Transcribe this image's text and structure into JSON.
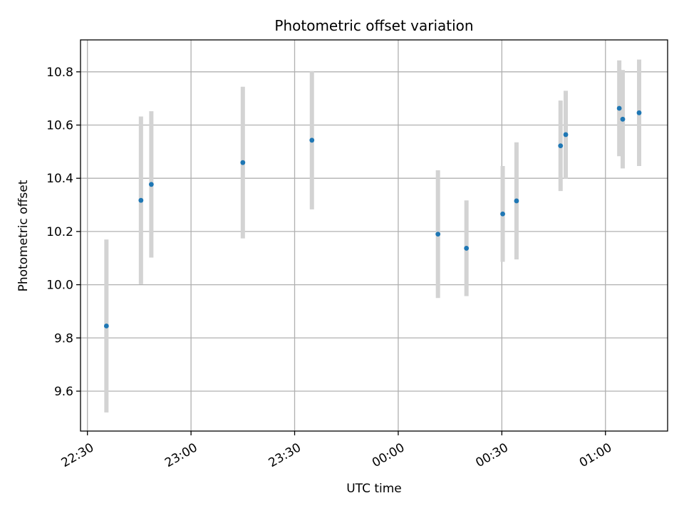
{
  "chart_data": {
    "type": "scatter",
    "title": "Photometric offset variation",
    "xlabel": "UTC time",
    "ylabel": "Photometric offset",
    "x_axis": "time",
    "x_ticks": [
      "22:30",
      "23:00",
      "23:30",
      "00:00",
      "00:30",
      "01:00"
    ],
    "x_tick_minutes": [
      0,
      30,
      60,
      90,
      120,
      150
    ],
    "xlim_minutes": [
      -2,
      168
    ],
    "ylim": [
      9.45,
      10.92
    ],
    "y_ticks": [
      "9.6",
      "9.8",
      "10.0",
      "10.2",
      "10.4",
      "10.6",
      "10.8"
    ],
    "y_tick_values": [
      9.6,
      9.8,
      10.0,
      10.2,
      10.4,
      10.6,
      10.8
    ],
    "grid": true,
    "errorbar_color": "#d3d3d3",
    "marker_color": "#1f77b4",
    "series": [
      {
        "time": [
          "22:35:30",
          "22:45:30",
          "22:48:30",
          "23:15:00",
          "23:35:00",
          "00:11:30",
          "00:19:45",
          "00:30:15",
          "00:34:15",
          "00:47:00",
          "00:48:30",
          "01:04:00",
          "01:05:00",
          "01:09:45"
        ],
        "time_minutes": [
          5.5,
          15.5,
          18.5,
          45.0,
          65.0,
          101.5,
          109.75,
          120.25,
          124.25,
          137.0,
          138.5,
          154.0,
          155.0,
          159.75
        ],
        "y": [
          9.845,
          10.317,
          10.377,
          10.459,
          10.543,
          10.19,
          10.137,
          10.266,
          10.315,
          10.522,
          10.564,
          10.663,
          10.622,
          10.646
        ],
        "y_err": [
          0.325,
          0.315,
          0.275,
          0.285,
          0.26,
          0.24,
          0.18,
          0.18,
          0.22,
          0.17,
          0.165,
          0.18,
          0.185,
          0.2
        ]
      }
    ]
  }
}
